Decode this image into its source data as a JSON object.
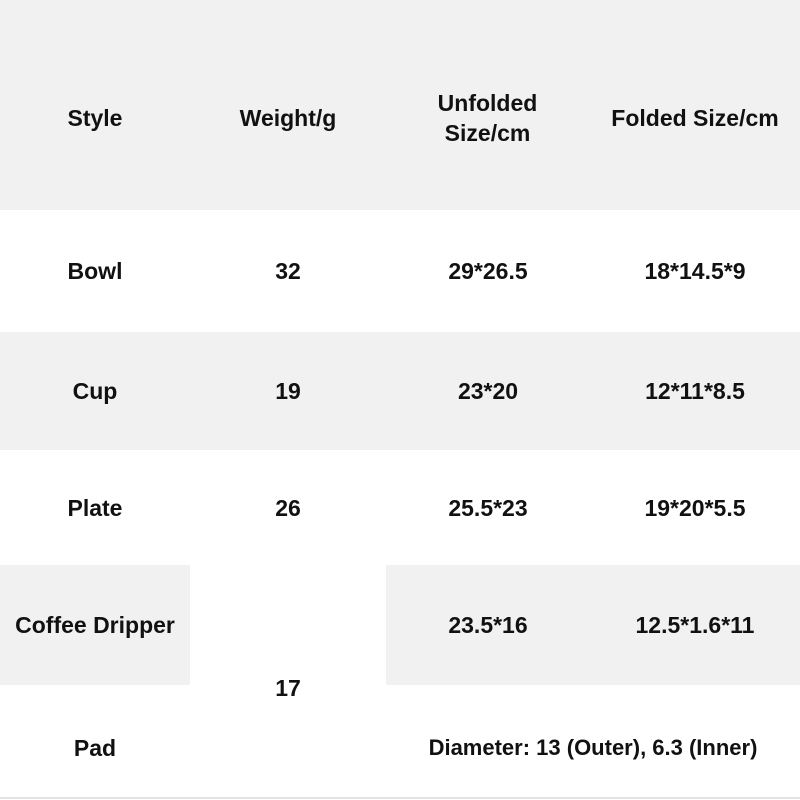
{
  "headers": [
    "Style",
    "Weight/g",
    "Unfolded Size/cm",
    "Folded Size/cm"
  ],
  "rows": [
    {
      "style": "Bowl",
      "weight": "32",
      "unfolded": "29*26.5",
      "folded": "18*14.5*9"
    },
    {
      "style": "Cup",
      "weight": "19",
      "unfolded": "23*20",
      "folded": "12*11*8.5"
    },
    {
      "style": "Plate",
      "weight": "26",
      "unfolded": "25.5*23",
      "folded": "19*20*5.5"
    },
    {
      "style": "Coffee Dripper",
      "weight": "17",
      "unfolded": "23.5*16",
      "folded": "12.5*1.6*11"
    },
    {
      "style": "Pad",
      "note": "Diameter: 13 (Outer), 6.3 (Inner)"
    }
  ],
  "colors": {
    "stripe": "#f1f1f1",
    "text": "#111111"
  }
}
